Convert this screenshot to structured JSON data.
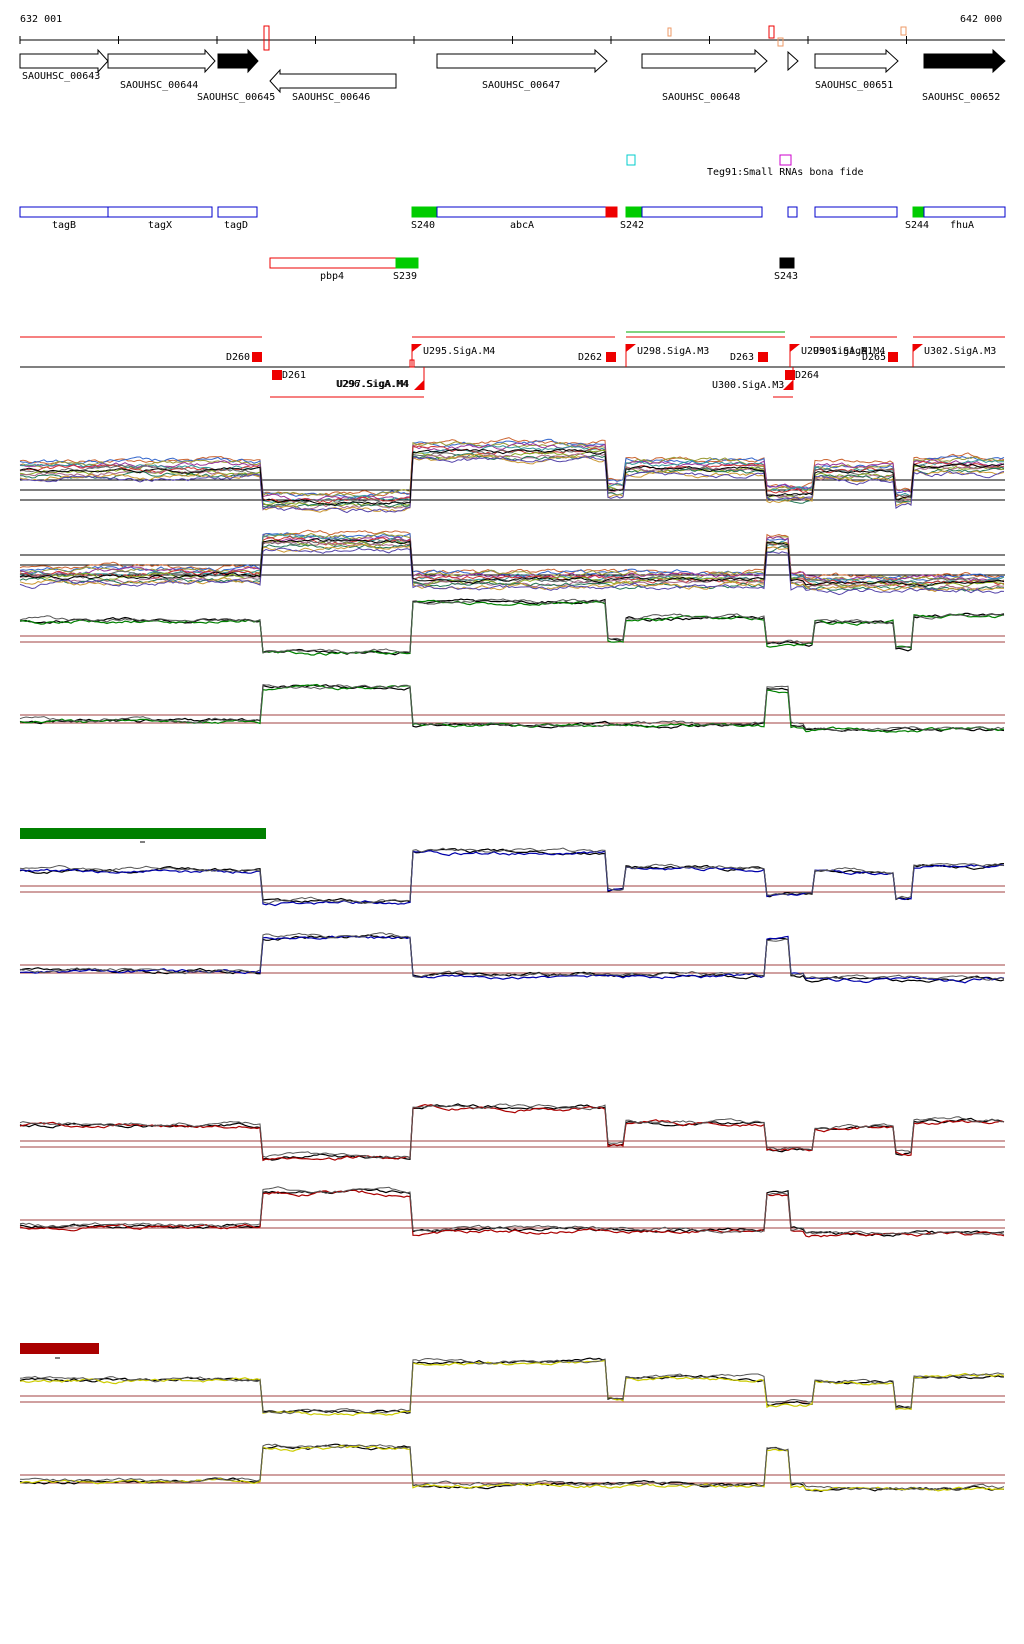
{
  "header": {
    "coord_start": "632 001",
    "coord_end": "642 000"
  },
  "colors": {
    "feature_blue": "#0000cc",
    "start_green": "#00cc00",
    "marker_red": "#ee0000",
    "sample_green": "#008000",
    "sample_blue": "#0000aa",
    "sample_red": "#aa0000",
    "sample_yellow": "#cccc00",
    "guide_brown": "#a04040",
    "cyan_box": "#00cccc",
    "magenta_box": "#cc00cc"
  },
  "genes": [
    {
      "id": "gene-00643",
      "label": "SAOUHSC_00643",
      "strand": "+",
      "filled": false
    },
    {
      "id": "gene-00644",
      "label": "SAOUHSC_00644",
      "strand": "+",
      "filled": false
    },
    {
      "id": "gene-00645",
      "label": "SAOUHSC_00645",
      "strand": "+",
      "filled": true
    },
    {
      "id": "gene-00646",
      "label": "SAOUHSC_00646",
      "strand": "-",
      "filled": false
    },
    {
      "id": "gene-00647",
      "label": "SAOUHSC_00647",
      "strand": "+",
      "filled": false
    },
    {
      "id": "gene-00648",
      "label": "SAOUHSC_00648",
      "strand": "+",
      "filled": false
    },
    {
      "id": "gene-00651",
      "label": "SAOUHSC_00651",
      "strand": "+",
      "filled": false
    },
    {
      "id": "gene-00652",
      "label": "SAOUHSC_00652",
      "strand": "+",
      "filled": true
    }
  ],
  "srna": {
    "label": "Teg91:Small RNAs bona fide"
  },
  "annotations": [
    "tagB",
    "tagX",
    "tagD",
    "abcA",
    "fhuA",
    "pbp4"
  ],
  "starts": [
    "S240",
    "S242",
    "S244",
    "S239",
    "S243"
  ],
  "promoters_up": [
    "U295.SigA.M4",
    "U298.SigA.M3",
    "U299.SigA.M1",
    "U301.SigA.M4",
    "U302.SigA.M3",
    "U300.SigA.M3"
  ],
  "promoters_down_overlap": [
    "U296.SigA.M4",
    "U297.SigA.M4"
  ],
  "terminators": [
    "D260",
    "D261",
    "D262",
    "D263",
    "D264",
    "D265"
  ]
}
